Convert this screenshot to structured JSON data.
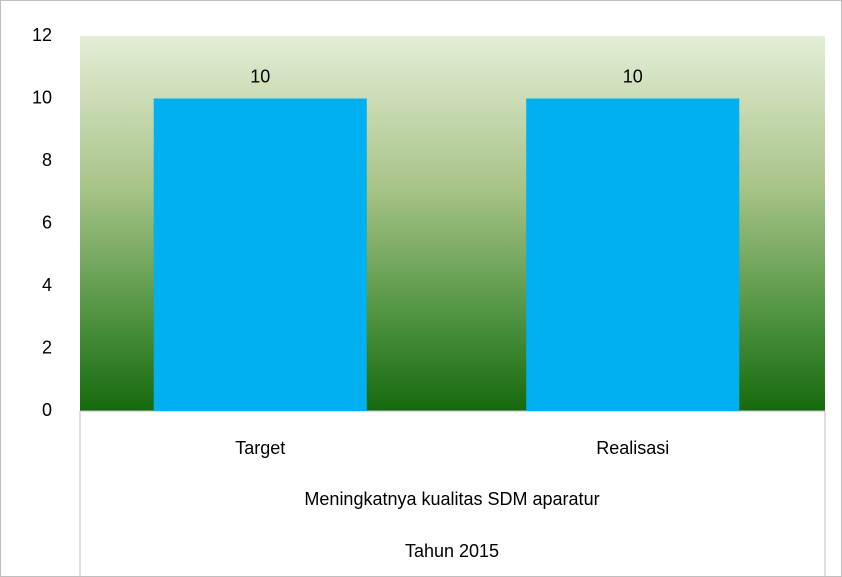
{
  "chart_data": {
    "type": "bar",
    "categories": [
      "Target",
      "Realisasi"
    ],
    "values": [
      10,
      10
    ],
    "color": "#00b0f0",
    "group_labels": [
      "Meningkatnya kualitas SDM aparatur",
      "Tahun 2015"
    ],
    "ylim": [
      0,
      12
    ],
    "yticks": [
      0,
      2,
      4,
      6,
      8,
      10,
      12
    ],
    "grid": false
  }
}
